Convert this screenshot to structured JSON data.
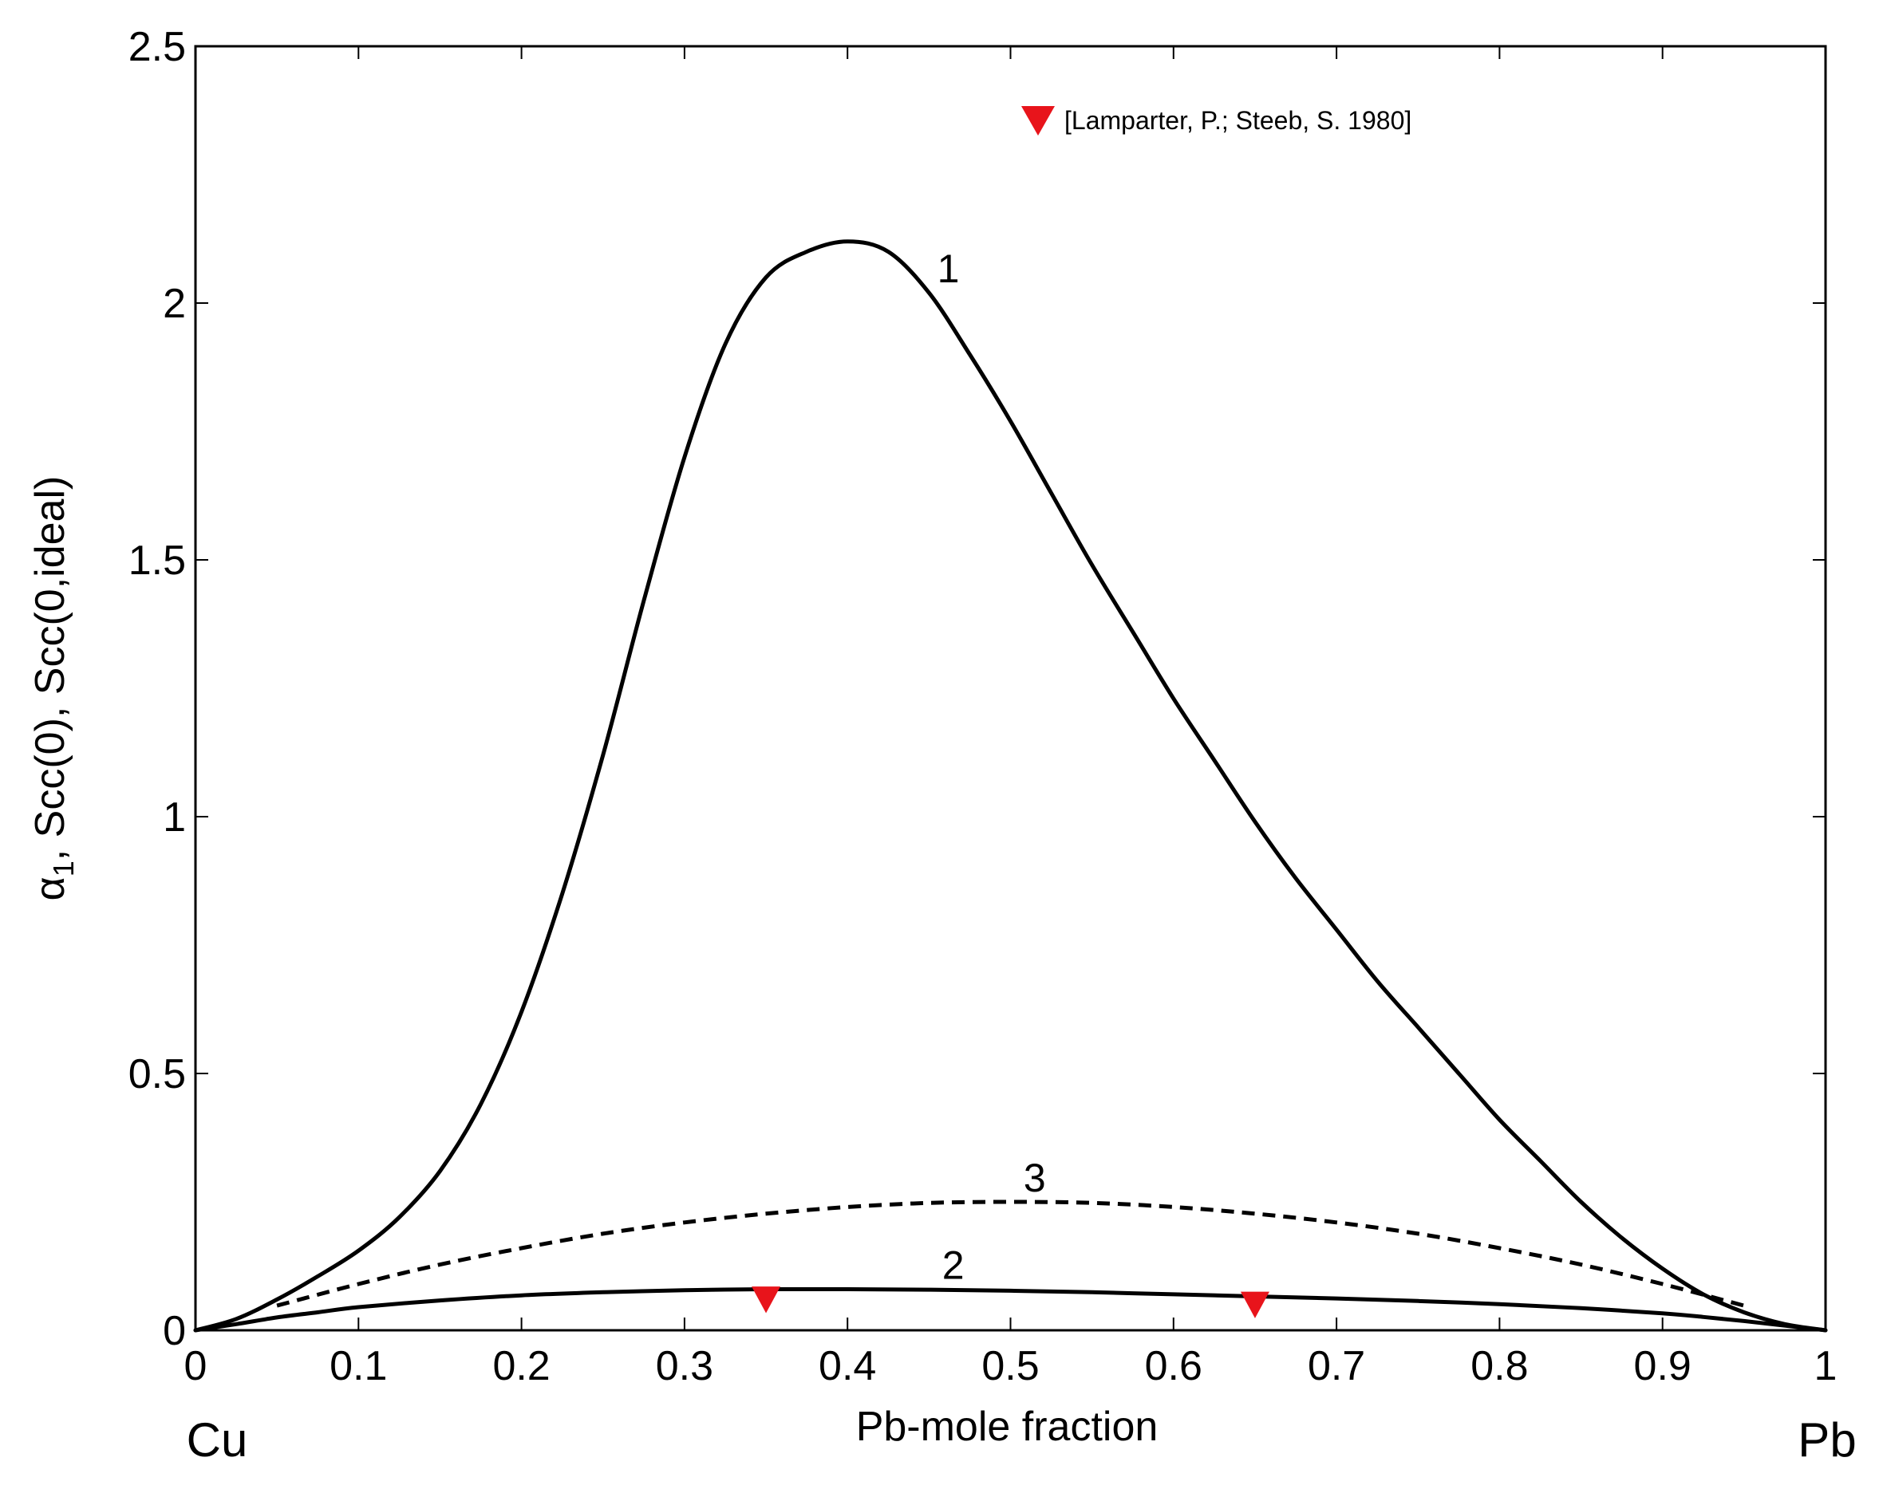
{
  "chart_data": {
    "type": "line",
    "xlabel": "Pb-mole fraction",
    "ylabel_alpha": "α",
    "ylabel_sub": "1",
    "ylabel_rest": ", Scc(0), Scc(0,ideal)",
    "xlim": [
      0,
      1
    ],
    "ylim": [
      0,
      2.5
    ],
    "grid": false,
    "legend_position": "top-right",
    "x_left_end_label": "Cu",
    "x_right_end_label": "Pb",
    "x_ticks": [
      0,
      0.1,
      0.2,
      0.3,
      0.4,
      0.5,
      0.6,
      0.7,
      0.8,
      0.9,
      1
    ],
    "x_tick_labels": [
      "0",
      "0.1",
      "0.2",
      "0.3",
      "0.4",
      "0.5",
      "0.6",
      "0.7",
      "0.8",
      "0.9",
      "1"
    ],
    "y_ticks": [
      0,
      0.5,
      1,
      1.5,
      2,
      2.5
    ],
    "y_tick_labels": [
      "0",
      "0.5",
      "1",
      "1.5",
      "2",
      "2.5"
    ],
    "series": [
      {
        "label": "1",
        "style": "solid",
        "color": "#000000",
        "x": [
          0,
          0.025,
          0.05,
          0.075,
          0.1,
          0.125,
          0.15,
          0.175,
          0.2,
          0.225,
          0.25,
          0.275,
          0.3,
          0.325,
          0.35,
          0.375,
          0.4,
          0.425,
          0.45,
          0.475,
          0.5,
          0.525,
          0.55,
          0.575,
          0.6,
          0.625,
          0.65,
          0.675,
          0.7,
          0.725,
          0.75,
          0.775,
          0.8,
          0.825,
          0.85,
          0.875,
          0.9,
          0.925,
          0.95,
          0.975,
          1
        ],
        "y": [
          0,
          0.022,
          0.06,
          0.105,
          0.155,
          0.22,
          0.31,
          0.44,
          0.62,
          0.85,
          1.12,
          1.42,
          1.7,
          1.92,
          2.05,
          2.1,
          2.12,
          2.1,
          2.02,
          1.9,
          1.77,
          1.63,
          1.49,
          1.36,
          1.23,
          1.11,
          0.99,
          0.88,
          0.78,
          0.68,
          0.59,
          0.5,
          0.41,
          0.33,
          0.25,
          0.18,
          0.12,
          0.07,
          0.035,
          0.012,
          0
        ]
      },
      {
        "label": "2",
        "style": "solid",
        "color": "#000000",
        "x": [
          0,
          0.025,
          0.05,
          0.075,
          0.1,
          0.15,
          0.2,
          0.25,
          0.3,
          0.35,
          0.4,
          0.45,
          0.5,
          0.55,
          0.6,
          0.65,
          0.7,
          0.75,
          0.8,
          0.85,
          0.9,
          0.925,
          0.95,
          0.975,
          1
        ],
        "y": [
          0,
          0.012,
          0.025,
          0.035,
          0.045,
          0.058,
          0.068,
          0.074,
          0.078,
          0.08,
          0.08,
          0.079,
          0.077,
          0.074,
          0.07,
          0.066,
          0.062,
          0.057,
          0.051,
          0.043,
          0.033,
          0.026,
          0.018,
          0.009,
          0
        ]
      },
      {
        "label": "3",
        "style": "dashed",
        "color": "#000000",
        "x": [
          0.05,
          0.1,
          0.15,
          0.2,
          0.25,
          0.3,
          0.35,
          0.4,
          0.45,
          0.5,
          0.55,
          0.6,
          0.65,
          0.7,
          0.75,
          0.8,
          0.85,
          0.9,
          0.95
        ],
        "y": [
          0.048,
          0.09,
          0.128,
          0.16,
          0.188,
          0.21,
          0.227,
          0.24,
          0.248,
          0.25,
          0.248,
          0.24,
          0.227,
          0.21,
          0.188,
          0.16,
          0.128,
          0.09,
          0.048
        ]
      }
    ],
    "curve_labels": [
      {
        "text": "1",
        "x": 0.455,
        "y": 2.04
      },
      {
        "text": "2",
        "x": 0.458,
        "y": 0.1
      },
      {
        "text": "3",
        "x": 0.508,
        "y": 0.27
      }
    ],
    "experimental": {
      "name": "[Lamparter, P.; Steeb, S. 1980]",
      "marker": "down-triangle",
      "color": "#e8141b",
      "points": [
        {
          "x": 0.35,
          "y": 0.06
        },
        {
          "x": 0.65,
          "y": 0.05
        }
      ]
    }
  }
}
